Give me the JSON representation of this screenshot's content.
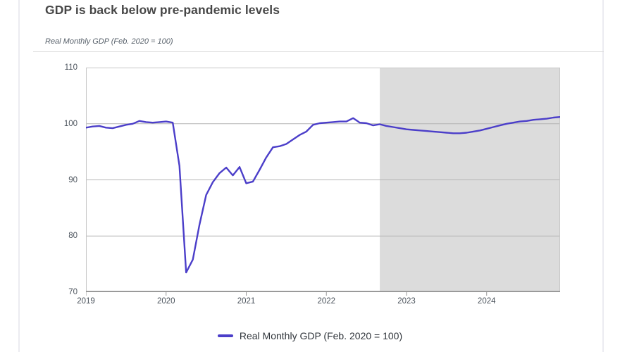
{
  "header": {
    "title": "GDP is back below pre-pandemic levels",
    "subtitle": "Real Monthly GDP (Feb. 2020 = 100)"
  },
  "legend": {
    "label": "Real Monthly GDP (Feb. 2020 = 100)"
  },
  "chart_data": {
    "type": "line",
    "title": "GDP is back below pre-pandemic levels",
    "subtitle": "Real Monthly GDP (Feb. 2020 = 100)",
    "x_unit": "month",
    "x_range": [
      "2019-01",
      "2024-12"
    ],
    "x_tick_labels": [
      "2019",
      "2020",
      "2021",
      "2022",
      "2023",
      "2024"
    ],
    "y_ticks": [
      70,
      80,
      90,
      100,
      110
    ],
    "ylim": [
      70,
      110
    ],
    "grid": true,
    "legend_position": "bottom",
    "line_color": "#4b3ec9",
    "forecast_shading": {
      "start_month": "2022-09",
      "start_index": 44,
      "color": "#dcdcdc"
    },
    "series": [
      {
        "name": "Real Monthly GDP (Feb. 2020 = 100)",
        "color": "#4b3ec9",
        "values": [
          99.3,
          99.5,
          99.6,
          99.3,
          99.2,
          99.5,
          99.8,
          100.0,
          100.5,
          100.3,
          100.2,
          100.3,
          100.4,
          100.2,
          92.5,
          73.5,
          75.8,
          82.0,
          87.3,
          89.6,
          91.2,
          92.2,
          90.8,
          92.3,
          89.4,
          89.7,
          91.8,
          94.0,
          95.8,
          96.0,
          96.4,
          97.2,
          98.0,
          98.6,
          99.8,
          100.1,
          100.2,
          100.3,
          100.4,
          100.4,
          101.0,
          100.2,
          100.1,
          99.7,
          99.9,
          99.6,
          99.4,
          99.2,
          99.0,
          98.9,
          98.8,
          98.7,
          98.6,
          98.5,
          98.4,
          98.3,
          98.3,
          98.4,
          98.6,
          98.8,
          99.1,
          99.4,
          99.7,
          100.0,
          100.2,
          100.4,
          100.5,
          100.7,
          100.8,
          100.9,
          101.1,
          101.2
        ]
      }
    ]
  }
}
